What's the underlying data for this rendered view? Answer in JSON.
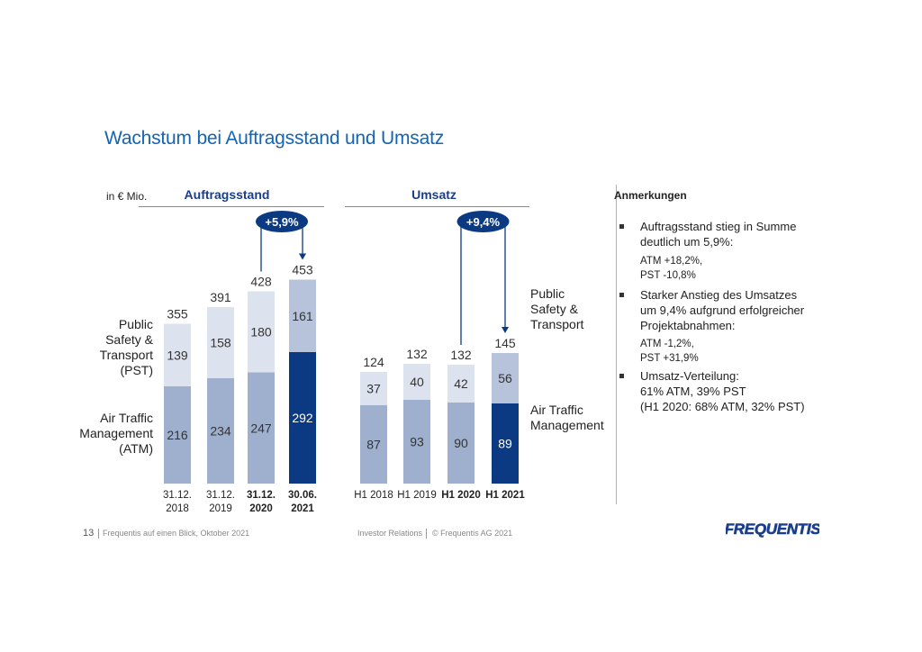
{
  "title": "Wachstum bei Auftragsstand und Umsatz",
  "unit_label": "in € Mio.",
  "chart_data": [
    {
      "type": "bar",
      "stacked": true,
      "title": "Auftragsstand",
      "categories": [
        "31.12.\n2018",
        "31.12.\n2019",
        "31.12.\n2020",
        "30.06.\n2021"
      ],
      "category_bold": [
        false,
        false,
        true,
        true
      ],
      "series": [
        {
          "name": "Air Traffic Management (ATM)",
          "values": [
            216,
            234,
            247,
            292
          ],
          "colors": [
            "#9fb0cf",
            "#9fb0cf",
            "#9fb0cf",
            "#0b3a83"
          ]
        },
        {
          "name": "Public Safety & Transport (PST)",
          "values": [
            139,
            158,
            180,
            161
          ],
          "colors": [
            "#dde3ee",
            "#dde3ee",
            "#dde3ee",
            "#b7c3da"
          ]
        }
      ],
      "totals": [
        355,
        391,
        428,
        453
      ],
      "growth": {
        "label": "+5,9%",
        "from_index": 2,
        "to_index": 3
      }
    },
    {
      "type": "bar",
      "stacked": true,
      "title": "Umsatz",
      "categories": [
        "H1 2018",
        "H1 2019",
        "H1 2020",
        "H1 2021"
      ],
      "category_bold": [
        false,
        false,
        true,
        true
      ],
      "series": [
        {
          "name": "Air Traffic Management",
          "values": [
            87,
            93,
            90,
            89
          ],
          "colors": [
            "#9fb0cf",
            "#9fb0cf",
            "#9fb0cf",
            "#0b3a83"
          ]
        },
        {
          "name": "Public Safety & Transport",
          "values": [
            37,
            40,
            42,
            56
          ],
          "colors": [
            "#dde3ee",
            "#dde3ee",
            "#dde3ee",
            "#b7c3da"
          ]
        }
      ],
      "totals": [
        124,
        132,
        132,
        145
      ],
      "growth": {
        "label": "+9,4%",
        "from_index": 2,
        "to_index": 3
      }
    }
  ],
  "legend_left": {
    "pst": [
      "Public",
      "Safety &",
      "Transport",
      "(PST)"
    ],
    "atm": [
      "Air Traffic",
      "Management",
      "(ATM)"
    ]
  },
  "legend_right": {
    "pst": [
      "Public",
      "Safety &",
      "Transport"
    ],
    "atm": [
      "Air Traffic",
      "Management"
    ]
  },
  "notes": {
    "title": "Anmerkungen",
    "b1": [
      "Auftragsstand stieg in Summe",
      "deutlich um 5,9%:"
    ],
    "b1_sub": [
      "ATM +18,2%,",
      "PST -10,8%"
    ],
    "b2": [
      "Starker Anstieg des Umsatzes",
      "um 9,4% aufgrund erfolgreicher",
      "Projektabnahmen:"
    ],
    "b2_sub": [
      "ATM -1,2%,",
      "PST +31,9%"
    ],
    "b3": [
      "Umsatz-Verteilung:",
      "61% ATM, 39% PST",
      "(H1 2020: 68% ATM, 32% PST)"
    ]
  },
  "footer": {
    "page": "13",
    "left": "Frequentis auf einen Blick, Oktober 2021",
    "mid": "Investor Relations",
    "right": "© Frequentis AG 2021",
    "logo": "FREQUENTIS"
  },
  "colors": {
    "title": "#1464b4",
    "header": "#1a3e8a",
    "badge": "#0b3a83"
  }
}
